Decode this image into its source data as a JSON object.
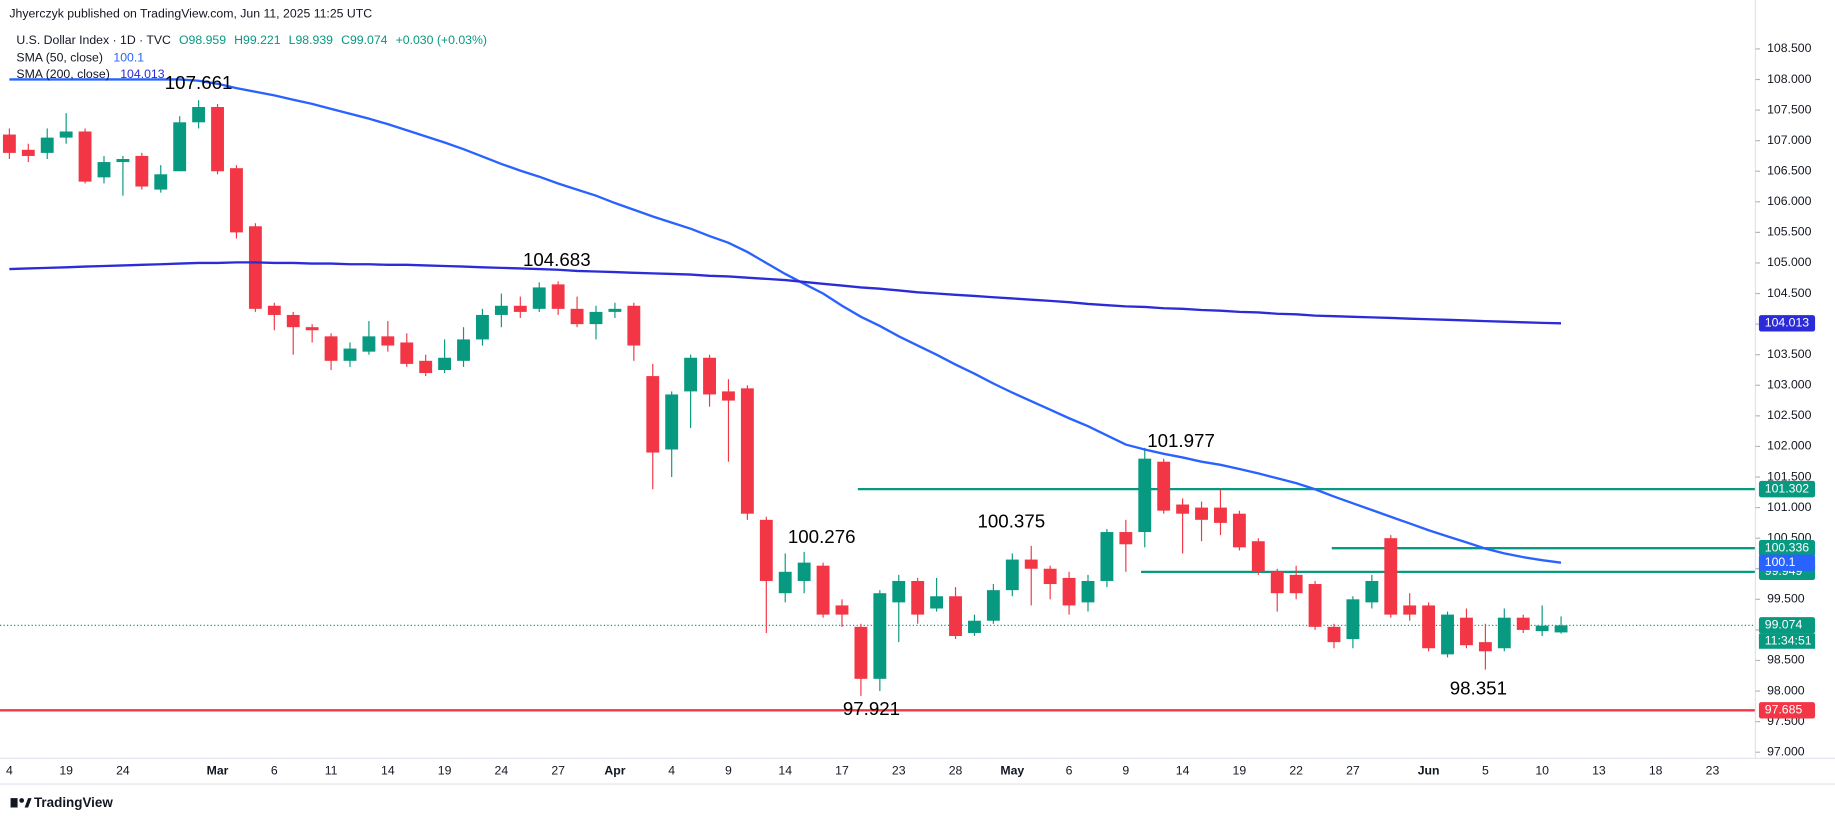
{
  "publisher": "Jhyerczyk published on TradingView.com, Jun 11, 2025 11:25 UTC",
  "branding": "TradingView",
  "chart_data": {
    "type": "candlestick",
    "title": "U.S. Dollar Index · 1D · TVC",
    "ohlc_header": [
      "O98.959",
      "H99.221",
      "L98.939",
      "C99.074"
    ],
    "change": "+0.030 (+0.03%)",
    "up_color": "#089981",
    "down_color": "#f23645",
    "categories": [
      "4",
      null,
      null,
      "19",
      null,
      null,
      "24",
      null,
      null,
      null,
      null,
      "Mar",
      null,
      null,
      "6",
      null,
      null,
      "11",
      null,
      null,
      "14",
      null,
      null,
      "19",
      null,
      null,
      "24",
      null,
      null,
      "27",
      null,
      null,
      "Apr",
      null,
      null,
      "4",
      null,
      null,
      "9",
      null,
      null,
      "14",
      null,
      null,
      "17",
      null,
      null,
      "23",
      null,
      null,
      "28",
      null,
      null,
      "May",
      null,
      null,
      "6",
      null,
      null,
      "9",
      null,
      null,
      "14",
      null,
      null,
      "19",
      null,
      null,
      "22",
      null,
      null,
      "27",
      null,
      null,
      null,
      "Jun",
      null,
      null,
      "5",
      null,
      null,
      "10",
      null,
      null,
      "13",
      null,
      null,
      "18",
      null,
      null,
      "23"
    ],
    "candles": [
      {
        "open": 107.1,
        "high": 107.2,
        "low": 106.7,
        "close": 106.8
      },
      {
        "open": 106.85,
        "high": 106.95,
        "low": 106.65,
        "close": 106.75
      },
      {
        "open": 106.8,
        "high": 107.2,
        "low": 106.7,
        "close": 107.05
      },
      {
        "open": 107.05,
        "high": 107.45,
        "low": 106.95,
        "close": 107.15
      },
      {
        "open": 107.15,
        "high": 107.2,
        "low": 106.3,
        "close": 106.33
      },
      {
        "open": 106.4,
        "high": 106.75,
        "low": 106.3,
        "close": 106.65
      },
      {
        "open": 106.65,
        "high": 106.75,
        "low": 106.1,
        "close": 106.7
      },
      {
        "open": 106.75,
        "high": 106.8,
        "low": 106.2,
        "close": 106.25
      },
      {
        "open": 106.2,
        "high": 106.6,
        "low": 106.15,
        "close": 106.45
      },
      {
        "open": 106.5,
        "high": 107.4,
        "low": 106.5,
        "close": 107.3
      },
      {
        "open": 107.3,
        "high": 107.661,
        "low": 107.2,
        "close": 107.55
      },
      {
        "open": 107.55,
        "high": 107.6,
        "low": 106.45,
        "close": 106.5
      },
      {
        "open": 106.55,
        "high": 106.6,
        "low": 105.4,
        "close": 105.5
      },
      {
        "open": 105.6,
        "high": 105.65,
        "low": 104.2,
        "close": 104.25
      },
      {
        "open": 104.3,
        "high": 104.35,
        "low": 103.9,
        "close": 104.15
      },
      {
        "open": 104.15,
        "high": 104.2,
        "low": 103.5,
        "close": 103.95
      },
      {
        "open": 103.95,
        "high": 104.0,
        "low": 103.7,
        "close": 103.9
      },
      {
        "open": 103.8,
        "high": 103.85,
        "low": 103.25,
        "close": 103.4
      },
      {
        "open": 103.4,
        "high": 103.7,
        "low": 103.3,
        "close": 103.6
      },
      {
        "open": 103.55,
        "high": 104.05,
        "low": 103.5,
        "close": 103.8
      },
      {
        "open": 103.8,
        "high": 104.05,
        "low": 103.55,
        "close": 103.65
      },
      {
        "open": 103.7,
        "high": 103.85,
        "low": 103.3,
        "close": 103.35
      },
      {
        "open": 103.4,
        "high": 103.5,
        "low": 103.15,
        "close": 103.2
      },
      {
        "open": 103.25,
        "high": 103.75,
        "low": 103.2,
        "close": 103.45
      },
      {
        "open": 103.4,
        "high": 103.95,
        "low": 103.3,
        "close": 103.75
      },
      {
        "open": 103.75,
        "high": 104.25,
        "low": 103.65,
        "close": 104.15
      },
      {
        "open": 104.15,
        "high": 104.5,
        "low": 103.95,
        "close": 104.3
      },
      {
        "open": 104.3,
        "high": 104.45,
        "low": 104.1,
        "close": 104.2
      },
      {
        "open": 104.25,
        "high": 104.683,
        "low": 104.2,
        "close": 104.6
      },
      {
        "open": 104.65,
        "high": 104.7,
        "low": 104.15,
        "close": 104.25
      },
      {
        "open": 104.25,
        "high": 104.45,
        "low": 103.95,
        "close": 104.0
      },
      {
        "open": 104.0,
        "high": 104.3,
        "low": 103.75,
        "close": 104.2
      },
      {
        "open": 104.2,
        "high": 104.35,
        "low": 104.1,
        "close": 104.25
      },
      {
        "open": 104.3,
        "high": 104.35,
        "low": 103.4,
        "close": 103.65
      },
      {
        "open": 103.15,
        "high": 103.35,
        "low": 101.3,
        "close": 101.9
      },
      {
        "open": 101.95,
        "high": 102.9,
        "low": 101.5,
        "close": 102.85
      },
      {
        "open": 102.9,
        "high": 103.5,
        "low": 102.3,
        "close": 103.45
      },
      {
        "open": 103.45,
        "high": 103.5,
        "low": 102.65,
        "close": 102.85
      },
      {
        "open": 102.9,
        "high": 103.1,
        "low": 101.75,
        "close": 102.75
      },
      {
        "open": 102.95,
        "high": 103.0,
        "low": 100.8,
        "close": 100.9
      },
      {
        "open": 100.8,
        "high": 100.85,
        "low": 98.95,
        "close": 99.8
      },
      {
        "open": 99.6,
        "high": 100.25,
        "low": 99.45,
        "close": 99.95
      },
      {
        "open": 99.8,
        "high": 100.276,
        "low": 99.6,
        "close": 100.1
      },
      {
        "open": 100.05,
        "high": 100.1,
        "low": 99.2,
        "close": 99.25
      },
      {
        "open": 99.4,
        "high": 99.5,
        "low": 99.05,
        "close": 99.25
      },
      {
        "open": 99.05,
        "high": 99.1,
        "low": 97.921,
        "close": 98.2
      },
      {
        "open": 98.2,
        "high": 99.65,
        "low": 98.0,
        "close": 99.6
      },
      {
        "open": 99.45,
        "high": 99.9,
        "low": 98.8,
        "close": 99.8
      },
      {
        "open": 99.8,
        "high": 99.85,
        "low": 99.1,
        "close": 99.25
      },
      {
        "open": 99.35,
        "high": 99.85,
        "low": 99.3,
        "close": 99.55
      },
      {
        "open": 99.55,
        "high": 99.7,
        "low": 98.85,
        "close": 98.9
      },
      {
        "open": 98.95,
        "high": 99.25,
        "low": 98.9,
        "close": 99.15
      },
      {
        "open": 99.15,
        "high": 99.75,
        "low": 99.1,
        "close": 99.65
      },
      {
        "open": 99.65,
        "high": 100.25,
        "low": 99.55,
        "close": 100.15
      },
      {
        "open": 100.15,
        "high": 100.375,
        "low": 99.4,
        "close": 100.0
      },
      {
        "open": 100.0,
        "high": 100.05,
        "low": 99.5,
        "close": 99.75
      },
      {
        "open": 99.85,
        "high": 99.95,
        "low": 99.25,
        "close": 99.4
      },
      {
        "open": 99.45,
        "high": 99.9,
        "low": 99.3,
        "close": 99.8
      },
      {
        "open": 99.8,
        "high": 100.65,
        "low": 99.7,
        "close": 100.6
      },
      {
        "open": 100.6,
        "high": 100.8,
        "low": 99.95,
        "close": 100.4
      },
      {
        "open": 100.6,
        "high": 101.977,
        "low": 100.35,
        "close": 101.8
      },
      {
        "open": 101.75,
        "high": 101.8,
        "low": 100.9,
        "close": 100.95
      },
      {
        "open": 101.05,
        "high": 101.15,
        "low": 100.25,
        "close": 100.9
      },
      {
        "open": 101.0,
        "high": 101.1,
        "low": 100.45,
        "close": 100.8
      },
      {
        "open": 101.0,
        "high": 101.3,
        "low": 100.55,
        "close": 100.75
      },
      {
        "open": 100.9,
        "high": 100.95,
        "low": 100.3,
        "close": 100.35
      },
      {
        "open": 100.45,
        "high": 100.5,
        "low": 99.9,
        "close": 99.95
      },
      {
        "open": 99.95,
        "high": 100.0,
        "low": 99.3,
        "close": 99.6
      },
      {
        "open": 99.9,
        "high": 100.05,
        "low": 99.5,
        "close": 99.6
      },
      {
        "open": 99.75,
        "high": 99.8,
        "low": 99.0,
        "close": 99.05
      },
      {
        "open": 99.05,
        "high": 99.1,
        "low": 98.7,
        "close": 98.8
      },
      {
        "open": 98.85,
        "high": 99.55,
        "low": 98.7,
        "close": 99.5
      },
      {
        "open": 99.45,
        "high": 99.9,
        "low": 99.35,
        "close": 99.8
      },
      {
        "open": 100.5,
        "high": 100.55,
        "low": 99.2,
        "close": 99.25
      },
      {
        "open": 99.4,
        "high": 99.6,
        "low": 99.15,
        "close": 99.25
      },
      {
        "open": 99.4,
        "high": 99.45,
        "low": 98.65,
        "close": 98.7
      },
      {
        "open": 98.6,
        "high": 99.3,
        "low": 98.55,
        "close": 99.25
      },
      {
        "open": 99.2,
        "high": 99.35,
        "low": 98.7,
        "close": 98.75
      },
      {
        "open": 98.8,
        "high": 99.1,
        "low": 98.351,
        "close": 98.65
      },
      {
        "open": 98.7,
        "high": 99.35,
        "low": 98.65,
        "close": 99.2
      },
      {
        "open": 99.2,
        "high": 99.25,
        "low": 98.95,
        "close": 99.0
      },
      {
        "open": 98.98,
        "high": 99.4,
        "low": 98.9,
        "close": 99.07
      },
      {
        "open": 98.959,
        "high": 99.221,
        "low": 98.939,
        "close": 99.074
      },
      null,
      null,
      null,
      null,
      null,
      null,
      null,
      null
    ],
    "series": [
      {
        "name": "SMA (50, close)",
        "color": "#2962ff",
        "values": [
          108.0,
          108.0,
          108.0,
          108.0,
          108.0,
          108.0,
          108.0,
          108.0,
          108.0,
          108.0,
          107.98,
          107.93,
          107.86,
          107.8,
          107.74,
          107.67,
          107.6,
          107.52,
          107.44,
          107.36,
          107.27,
          107.17,
          107.07,
          106.97,
          106.86,
          106.74,
          106.62,
          106.51,
          106.41,
          106.3,
          106.2,
          106.1,
          105.98,
          105.87,
          105.76,
          105.66,
          105.56,
          105.44,
          105.33,
          105.18,
          105.0,
          104.82,
          104.66,
          104.5,
          104.3,
          104.12,
          103.97,
          103.8,
          103.65,
          103.5,
          103.34,
          103.19,
          103.03,
          102.88,
          102.74,
          102.6,
          102.46,
          102.33,
          102.18,
          102.03,
          101.95,
          101.88,
          101.82,
          101.75,
          101.7,
          101.63,
          101.56,
          101.48,
          101.4,
          101.3,
          101.18,
          101.07,
          100.96,
          100.85,
          100.74,
          100.63,
          100.53,
          100.43,
          100.33,
          100.25,
          100.19,
          100.14,
          100.1,
          null,
          null,
          null,
          null,
          null,
          null,
          null,
          null
        ]
      },
      {
        "name": "SMA (200, close)",
        "color": "#2b2bd8",
        "values": [
          104.9,
          104.91,
          104.92,
          104.93,
          104.94,
          104.95,
          104.96,
          104.97,
          104.98,
          104.99,
          105.0,
          105.0,
          105.01,
          105.01,
          105.0,
          105.0,
          104.99,
          104.99,
          104.98,
          104.98,
          104.97,
          104.97,
          104.96,
          104.95,
          104.94,
          104.93,
          104.92,
          104.91,
          104.9,
          104.89,
          104.87,
          104.86,
          104.85,
          104.84,
          104.83,
          104.82,
          104.81,
          104.79,
          104.78,
          104.76,
          104.74,
          104.72,
          104.69,
          104.66,
          104.63,
          104.6,
          104.58,
          104.55,
          104.52,
          104.5,
          104.48,
          104.46,
          104.44,
          104.42,
          104.4,
          104.38,
          104.36,
          104.33,
          104.31,
          104.29,
          104.28,
          104.26,
          104.25,
          104.23,
          104.22,
          104.2,
          104.19,
          104.17,
          104.16,
          104.14,
          104.13,
          104.12,
          104.11,
          104.1,
          104.09,
          104.08,
          104.07,
          104.06,
          104.05,
          104.04,
          104.03,
          104.02,
          104.013,
          null,
          null,
          null,
          null,
          null,
          null,
          null,
          null
        ]
      }
    ],
    "levels": [
      {
        "value": 101.302,
        "color": "#089981"
      },
      {
        "value": 100.336,
        "color": "#089981"
      },
      {
        "value": 99.949,
        "color": "#089981"
      },
      {
        "value": 97.685,
        "color": "#f23645"
      }
    ],
    "countdown": "11:34:51",
    "ylim": [
      96.9,
      109.3
    ],
    "yticks": [
      {
        "value": 97,
        "label": "97.000"
      },
      {
        "value": 97.5,
        "label": "97.500"
      },
      {
        "value": 98,
        "label": "98.000"
      },
      {
        "value": 98.5,
        "label": "98.500"
      },
      {
        "value": 99,
        "label": "99.000"
      },
      {
        "value": 99.5,
        "label": "99.500"
      },
      {
        "value": 100,
        "label": "100.000"
      },
      {
        "value": 100.5,
        "label": "100.500"
      },
      {
        "value": 101,
        "label": "101.000"
      },
      {
        "value": 101.5,
        "label": "101.500"
      },
      {
        "value": 102,
        "label": "102.000"
      },
      {
        "value": 102.5,
        "label": "102.500"
      },
      {
        "value": 103,
        "label": "103.000"
      },
      {
        "value": 103.5,
        "label": "103.500"
      },
      {
        "value": 104,
        "label": "104.000"
      },
      {
        "value": 104.5,
        "label": "104.500"
      },
      {
        "value": 105,
        "label": "105.000"
      },
      {
        "value": 105.5,
        "label": "105.500"
      },
      {
        "value": 106,
        "label": "106.000"
      },
      {
        "value": 106.5,
        "label": "106.500"
      },
      {
        "value": 107,
        "label": "107.000"
      },
      {
        "value": 107.5,
        "label": "107.500"
      },
      {
        "value": 108,
        "label": "108.000"
      },
      {
        "value": 108.5,
        "label": "108.500"
      }
    ],
    "grid": false
  }
}
